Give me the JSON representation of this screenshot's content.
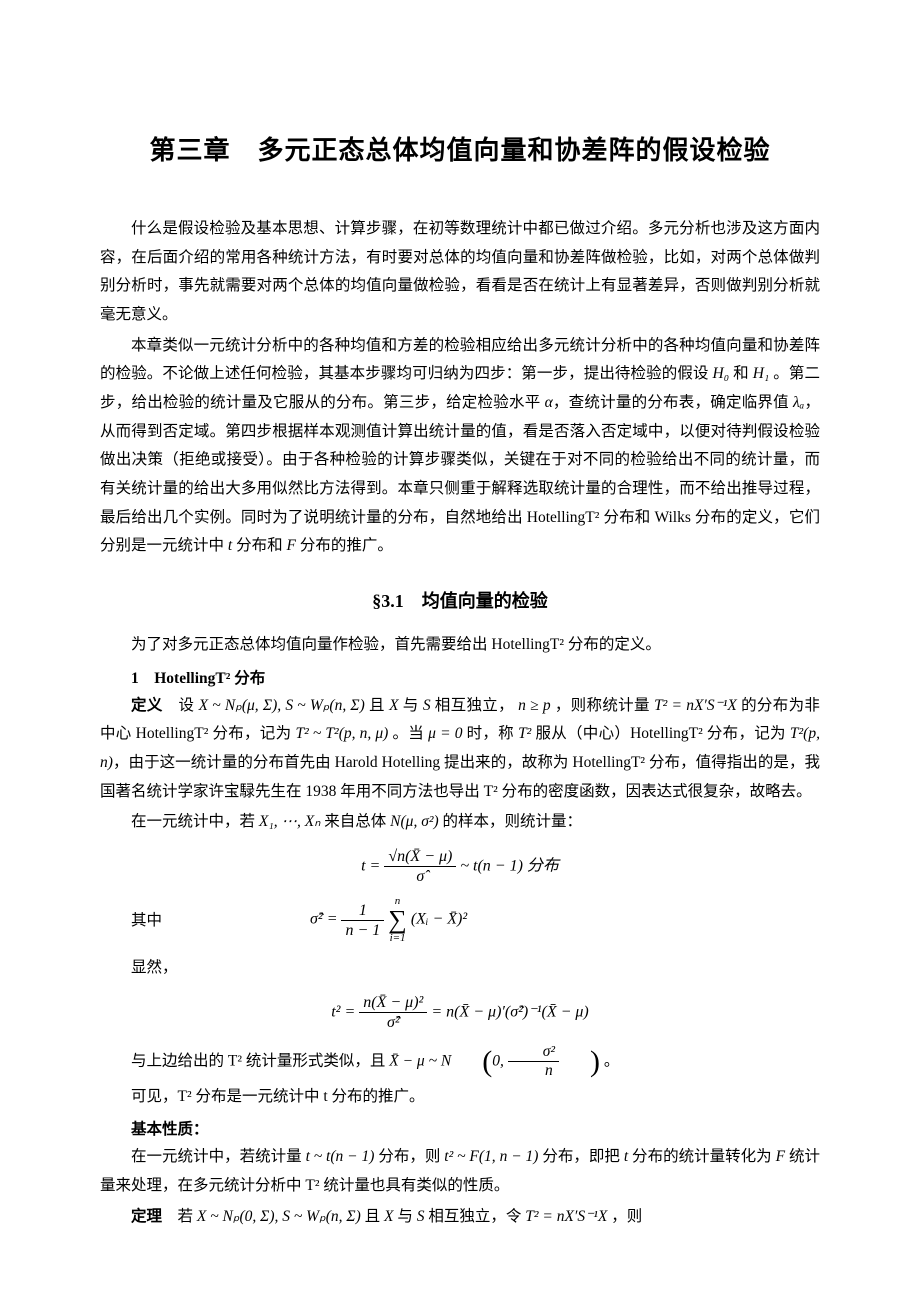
{
  "chapterTitle": "第三章　多元正态总体均值向量和协差阵的假设检验",
  "para1": "什么是假设检验及基本思想、计算步骤，在初等数理统计中都已做过介绍。多元分析也涉及这方面内容，在后面介绍的常用各种统计方法，有时要对总体的均值向量和协差阵做检验，比如，对两个总体做判别分析时，事先就需要对两个总体的均值向量做检验，看看是否在统计上有显著差异，否则做判别分析就毫无意义。",
  "para2a": "本章类似一元统计分析中的各种均值和方差的检验相应给出多元统计分析中的各种均值向量和协差阵的检验。不论做上述任何检验，其基本步骤均可归纳为四步：第一步，提出待检验的假设 ",
  "para2_H0": "H₀",
  "para2b": " 和 ",
  "para2_H1": "H₁",
  "para2c": " 。第二步，给出检验的统计量及它服从的分布。第三步，给定检验水平 ",
  "para2_alpha": "α",
  "para2d": "，查统计量的分布表，确定临界值 ",
  "para2_lambda": "λₐ",
  "para2e": "，从而得到否定域。第四步根据样本观测值计算出统计量的值，看是否落入否定域中，以便对待判假设检验做出决策（拒绝或接受）。由于各种检验的计算步骤类似，关键在于对不同的检验给出不同的统计量，而有关统计量的给出大多用似然比方法得到。本章只侧重于解释选取统计量的合理性，而不给出推导过程，最后给出几个实例。同时为了说明统计量的分布，自然地给出 HotellingT² 分布和 Wilks 分布的定义，它们分别是一元统计中 ",
  "para2_t": "t",
  "para2f": " 分布和 ",
  "para2_F": "F",
  "para2g": " 分布的推广。",
  "sectionTitle": "§3.1　均值向量的检验",
  "para3": "为了对多元正态总体均值向量作检验，首先需要给出 HotellingT² 分布的定义。",
  "sub1": "1　HotellingT² 分布",
  "def_label": "定义",
  "def_text1": "　设 ",
  "def_X": "X ~ Nₚ(μ, Σ),  S ~ Wₚ(n, Σ)",
  "def_text2": " 且 ",
  "def_XS": "X",
  "def_text3": " 与 ",
  "def_S": "S",
  "def_text4": " 相互独立，",
  "def_np": " n ≥ p ",
  "def_text5": "，则称统计量 ",
  "def_T2": "T² = nX′S⁻¹X",
  "def_text6": " 的分布为非中心 HotellingT² 分布，记为 ",
  "def_T2dist": "T² ~ T²(p, n, μ)",
  "def_text7": " 。当 ",
  "def_mu0": "μ = 0",
  "def_text8": " 时，称 ",
  "def_T2s": "T²",
  "def_text9": " 服从（中心）HotellingT² 分布，记为 ",
  "def_T2pn": "T²(p, n)",
  "def_text10": "，由于这一统计量的分布首先由 Harold Hotelling 提出来的，故称为 HotellingT² 分布，值得指出的是，我国著名统计学家许宝騄先生在 1938 年用不同方法也导出 T² 分布的密度函数，因表达式很复杂，故略去。",
  "para4a": "在一元统计中，若 ",
  "para4_X": "X₁, ⋯, Xₙ",
  "para4b": " 来自总体 ",
  "para4_N": "N(μ, σ²)",
  "para4c": " 的样本，则统计量：",
  "formula1_num": "√n(X̄ − μ)",
  "formula1_den": "σ̂",
  "formula1_tail": " ~ t(n − 1) 分布",
  "formula1_lhs": "t = ",
  "where_label": "其中",
  "formula2_lhs": "σ̂² = ",
  "formula2_num": "1",
  "formula2_den": "n − 1",
  "formula2_sum_top": "n",
  "formula2_sum_bot": "i=1",
  "formula2_body": "(Xᵢ − X̄)²",
  "obvious": "显然，",
  "formula3_lhs": "t² = ",
  "formula3_num": "n(X̄ − μ)²",
  "formula3_den": "σ̂²",
  "formula3_eq": " = n(X̄ − μ)′(σ̂²)⁻¹(X̄ − μ)",
  "para5a": "与上边给出的 T² 统计量形式类似，且 ",
  "para5_dist": "X̄ − μ ~ N",
  "para5_p1": "0, ",
  "para5_frac_num": "σ²",
  "para5_frac_den": "n",
  "para5b": " 。",
  "para6": "可见，T² 分布是一元统计中 t 分布的推广。",
  "sub2": "基本性质：",
  "para7a": "在一元统计中，若统计量 ",
  "para7_t": "t ~ t(n − 1)",
  "para7b": " 分布，则 ",
  "para7_t2": "t² ~ F(1, n − 1)",
  "para7c": " 分布，即把 ",
  "para7_tt": "t",
  "para7d": " 分布的统计量转化为 ",
  "para7_F": "F",
  "para7e": " 统计量来处理，在多元统计分析中 T² 统计量也具有类似的性质。",
  "thm_label": "定理",
  "thm_text1": "　若 ",
  "thm_X": "X ~ Nₚ(0, Σ),  S ~ Wₚ(n, Σ)",
  "thm_text2": " 且 ",
  "thm_XX": "X",
  "thm_text3": " 与 ",
  "thm_S": "S",
  "thm_text4": " 相互独立，令 ",
  "thm_T2": "T² = nX′S⁻¹X",
  "thm_text5": " ，则"
}
